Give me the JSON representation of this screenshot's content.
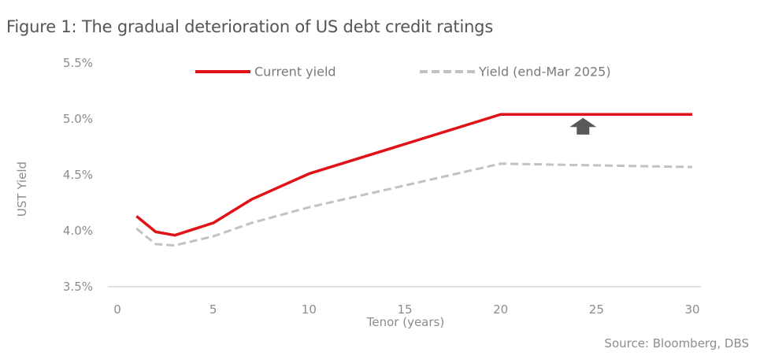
{
  "title": "Figure 1: The gradual deterioration of US debt credit ratings",
  "source": "Source: Bloomberg, DBS",
  "colors": {
    "current": "#e01218",
    "previous": "#c2c2c2",
    "arrow": "#595959",
    "axis": "#d9d9d9",
    "text": "#8c8c8c"
  },
  "chart_data": {
    "type": "line",
    "xlabel": "Tenor (years)",
    "ylabel": "UST Yield",
    "xlim": [
      0,
      30
    ],
    "ylim": [
      3.5,
      5.5
    ],
    "xticks": [
      0,
      5,
      10,
      15,
      20,
      25,
      30
    ],
    "xtick_labels": [
      "0",
      "5",
      "10",
      "15",
      "20",
      "25",
      "30"
    ],
    "yticks": [
      3.5,
      4.0,
      4.5,
      5.0,
      5.5
    ],
    "ytick_labels": [
      "3.5%",
      "4.0%",
      "4.5%",
      "5.0%",
      "5.5%"
    ],
    "grid": false,
    "legend_position": "top",
    "series": [
      {
        "name": "Current yield",
        "style": "solid",
        "x": [
          1,
          2,
          3,
          5,
          7,
          10,
          20,
          30
        ],
        "y": [
          4.13,
          3.99,
          3.96,
          4.07,
          4.28,
          4.51,
          5.04,
          5.04
        ]
      },
      {
        "name": "Yield (end-Mar 2025)",
        "style": "dashed",
        "x": [
          1,
          2,
          3,
          5,
          7,
          10,
          20,
          30
        ],
        "y": [
          4.02,
          3.88,
          3.87,
          3.95,
          4.07,
          4.21,
          4.6,
          4.57
        ]
      }
    ],
    "annotations": [
      {
        "type": "arrow-up",
        "x": 24.3,
        "y_from": 4.86,
        "y_to": 5.01,
        "meaning": "yield increase"
      }
    ]
  }
}
